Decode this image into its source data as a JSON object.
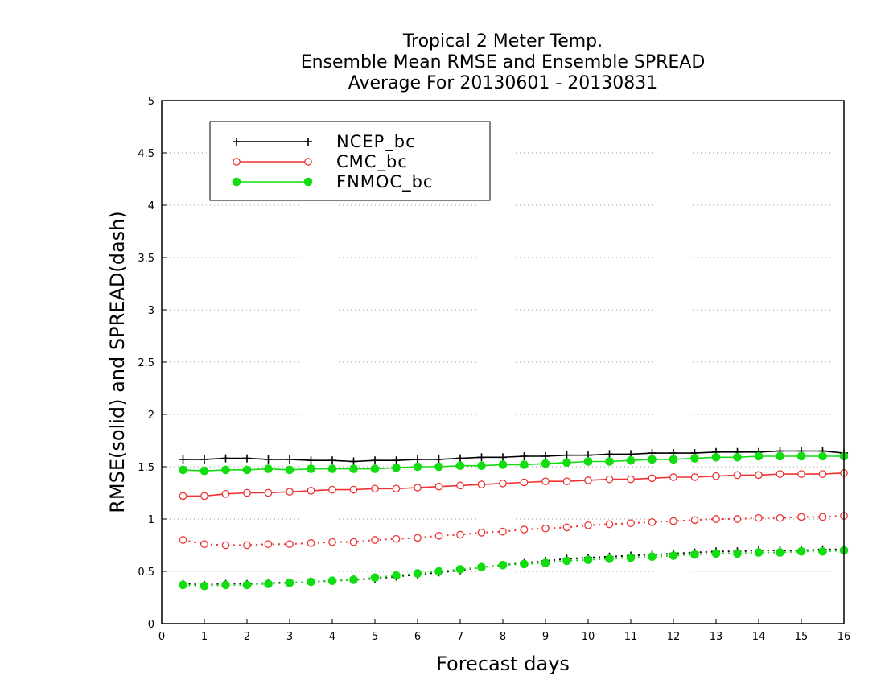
{
  "chart_data": {
    "type": "line",
    "title_lines": [
      "Tropical 2 Meter Temp.",
      "Ensemble Mean RMSE and Ensemble SPREAD",
      "Average For 20130601 - 20130831"
    ],
    "xlabel": "Forecast days",
    "ylabel": "RMSE(solid) and SPREAD(dash)",
    "xlim": [
      0,
      16
    ],
    "ylim": [
      0,
      5
    ],
    "x_ticks": [
      "0",
      "1",
      "2",
      "3",
      "4",
      "5",
      "6",
      "7",
      "8",
      "9",
      "10",
      "11",
      "12",
      "13",
      "14",
      "15",
      "16"
    ],
    "y_ticks": [
      "0",
      "0.5",
      "1",
      "1.5",
      "2",
      "2.5",
      "3",
      "3.5",
      "4",
      "4.5",
      "5"
    ],
    "grid": "horizontal dotted",
    "legend_position": "top-left",
    "x": [
      0.5,
      1,
      1.5,
      2,
      2.5,
      3,
      3.5,
      4,
      4.5,
      5,
      5.5,
      6,
      6.5,
      7,
      7.5,
      8,
      8.5,
      9,
      9.5,
      10,
      10.5,
      11,
      11.5,
      12,
      12.5,
      13,
      13.5,
      14,
      14.5,
      15,
      15.5,
      16
    ],
    "series": [
      {
        "name": "NCEP_bc",
        "color": "#000000",
        "marker": "plus",
        "rmse": [
          1.57,
          1.57,
          1.58,
          1.58,
          1.57,
          1.57,
          1.56,
          1.56,
          1.55,
          1.56,
          1.56,
          1.57,
          1.57,
          1.58,
          1.59,
          1.59,
          1.6,
          1.6,
          1.61,
          1.61,
          1.62,
          1.62,
          1.63,
          1.63,
          1.63,
          1.64,
          1.64,
          1.64,
          1.65,
          1.65,
          1.65,
          1.63
        ],
        "spread": [
          0.38,
          0.37,
          0.38,
          0.38,
          0.39,
          0.39,
          0.4,
          0.41,
          0.42,
          0.43,
          0.45,
          0.47,
          0.49,
          0.51,
          0.54,
          0.56,
          0.58,
          0.6,
          0.62,
          0.63,
          0.64,
          0.65,
          0.66,
          0.67,
          0.68,
          0.69,
          0.69,
          0.7,
          0.7,
          0.7,
          0.71,
          0.71
        ]
      },
      {
        "name": "CMC_bc",
        "color": "#ee3333",
        "marker": "open-circle",
        "rmse": [
          1.22,
          1.22,
          1.24,
          1.25,
          1.25,
          1.26,
          1.27,
          1.28,
          1.28,
          1.29,
          1.29,
          1.3,
          1.31,
          1.32,
          1.33,
          1.34,
          1.35,
          1.36,
          1.36,
          1.37,
          1.38,
          1.38,
          1.39,
          1.4,
          1.4,
          1.41,
          1.42,
          1.42,
          1.43,
          1.43,
          1.43,
          1.44
        ],
        "spread": [
          0.8,
          0.76,
          0.75,
          0.75,
          0.76,
          0.76,
          0.77,
          0.78,
          0.78,
          0.8,
          0.81,
          0.82,
          0.84,
          0.85,
          0.87,
          0.88,
          0.9,
          0.91,
          0.92,
          0.94,
          0.95,
          0.96,
          0.97,
          0.98,
          0.99,
          1.0,
          1.0,
          1.01,
          1.01,
          1.02,
          1.02,
          1.03
        ]
      },
      {
        "name": "FNMOC_bc",
        "color": "#11dd11",
        "marker": "filled-circle",
        "rmse": [
          1.47,
          1.46,
          1.47,
          1.47,
          1.48,
          1.47,
          1.48,
          1.48,
          1.48,
          1.48,
          1.49,
          1.5,
          1.5,
          1.51,
          1.51,
          1.52,
          1.52,
          1.53,
          1.54,
          1.55,
          1.55,
          1.56,
          1.57,
          1.57,
          1.58,
          1.59,
          1.59,
          1.6,
          1.6,
          1.6,
          1.6,
          1.6
        ],
        "spread": [
          0.37,
          0.36,
          0.37,
          0.37,
          0.38,
          0.39,
          0.4,
          0.41,
          0.42,
          0.44,
          0.46,
          0.48,
          0.5,
          0.52,
          0.54,
          0.56,
          0.57,
          0.58,
          0.6,
          0.61,
          0.62,
          0.63,
          0.64,
          0.65,
          0.66,
          0.67,
          0.67,
          0.68,
          0.68,
          0.69,
          0.69,
          0.7
        ]
      }
    ]
  }
}
